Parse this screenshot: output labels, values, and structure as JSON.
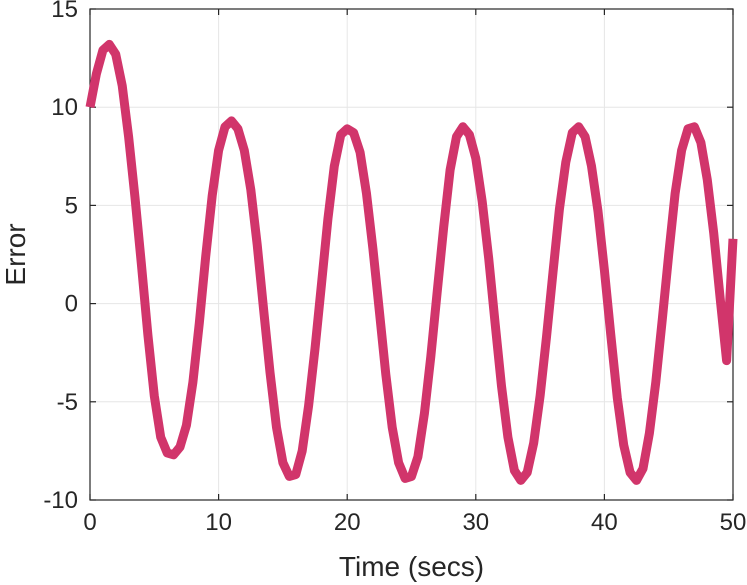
{
  "chart_data": {
    "type": "line",
    "title": "",
    "xlabel": "Time (secs)",
    "ylabel": "Error",
    "xlim": [
      0,
      50
    ],
    "ylim": [
      -10,
      15
    ],
    "xticks": [
      0,
      10,
      20,
      30,
      40,
      50
    ],
    "yticks": [
      -10,
      -5,
      0,
      5,
      10,
      15
    ],
    "xtick_labels": [
      "0",
      "10",
      "20",
      "30",
      "40",
      "50"
    ],
    "ytick_labels": [
      "-10",
      "-5",
      "0",
      "5",
      "10",
      "15"
    ],
    "grid": true,
    "legend": "none",
    "series": [
      {
        "color": "#d1356b",
        "x": [
          0,
          0.5,
          1,
          1.5,
          2,
          2.5,
          3,
          3.5,
          4,
          4.5,
          5,
          5.5,
          6,
          6.5,
          7,
          7.5,
          8,
          8.5,
          9,
          9.5,
          10,
          10.5,
          11,
          11.5,
          12,
          12.5,
          13,
          13.5,
          14,
          14.5,
          15,
          15.5,
          16,
          16.5,
          17,
          17.5,
          18,
          18.5,
          19,
          19.5,
          20,
          20.5,
          21,
          21.5,
          22,
          22.5,
          23,
          23.5,
          24,
          24.5,
          25,
          25.5,
          26,
          26.5,
          27,
          27.5,
          28,
          28.5,
          29,
          29.5,
          30,
          30.5,
          31,
          31.5,
          32,
          32.5,
          33,
          33.5,
          34,
          34.5,
          35,
          35.5,
          36,
          36.5,
          37,
          37.5,
          38,
          38.5,
          39,
          39.5,
          40,
          40.5,
          41,
          41.5,
          42,
          42.5,
          43,
          43.5,
          44,
          44.5,
          45,
          45.5,
          46,
          46.5,
          47,
          47.5,
          48,
          48.5,
          49,
          49.5,
          50
        ],
        "y": [
          10.0,
          11.7,
          12.9,
          13.2,
          12.7,
          11.1,
          8.5,
          5.4,
          2.0,
          -1.6,
          -4.7,
          -6.8,
          -7.6,
          -7.7,
          -7.3,
          -6.2,
          -4.0,
          -1.0,
          2.4,
          5.5,
          7.8,
          9.0,
          9.3,
          8.9,
          7.8,
          5.8,
          3.0,
          -0.3,
          -3.5,
          -6.3,
          -8.1,
          -8.8,
          -8.7,
          -7.5,
          -5.2,
          -2.3,
          1.0,
          4.3,
          7.0,
          8.6,
          8.9,
          8.7,
          7.7,
          5.6,
          2.8,
          -0.4,
          -3.6,
          -6.3,
          -8.1,
          -8.9,
          -8.8,
          -7.8,
          -5.6,
          -2.7,
          0.6,
          3.9,
          6.8,
          8.5,
          9.0,
          8.6,
          7.4,
          5.2,
          2.3,
          -1.0,
          -4.2,
          -6.8,
          -8.5,
          -9.0,
          -8.6,
          -7.1,
          -4.7,
          -1.7,
          1.6,
          4.8,
          7.2,
          8.7,
          9.0,
          8.5,
          7.0,
          4.7,
          1.7,
          -1.6,
          -4.8,
          -7.2,
          -8.6,
          -9.0,
          -8.4,
          -6.6,
          -4.0,
          -0.8,
          2.5,
          5.6,
          7.8,
          8.9,
          9.0,
          8.2,
          6.3,
          3.6,
          0.3,
          -2.9,
          3.3
        ]
      }
    ]
  }
}
